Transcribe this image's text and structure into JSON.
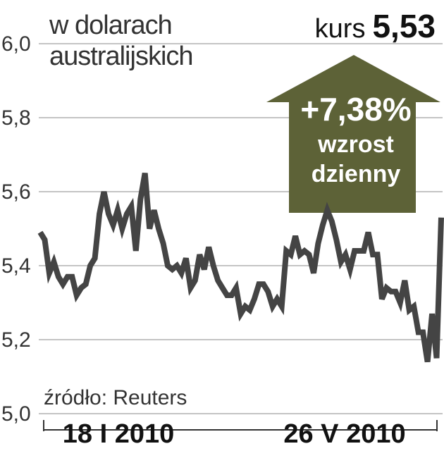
{
  "header": {
    "title_line1": "w dolarach",
    "title_line2": "australijskich",
    "kurs_label": "kurs",
    "kurs_value": "5,53"
  },
  "badge": {
    "change": "+7,38%",
    "line1": "wzrost",
    "line2": "dzienny",
    "color": "#5d6237"
  },
  "source": "źródło: Reuters",
  "colors": {
    "line": "#444444",
    "grid": "#888888",
    "axis": "#333333"
  },
  "chart_data": {
    "type": "line",
    "title": "w dolarach australijskich",
    "ylim": [
      5.0,
      6.0
    ],
    "yticks": [
      "6,0",
      "5,8",
      "5,6",
      "5,4",
      "5,2",
      "5,0"
    ],
    "ytick_values": [
      6.0,
      5.8,
      5.6,
      5.4,
      5.2,
      5.0
    ],
    "xlabels": [
      "18 I 2010",
      "26 V 2010"
    ],
    "grid": true,
    "series": [
      {
        "values": [
          5.49,
          5.47,
          5.38,
          5.41,
          5.37,
          5.35,
          5.37,
          5.37,
          5.32,
          5.34,
          5.35,
          5.4,
          5.42,
          5.54,
          5.6,
          5.54,
          5.51,
          5.55,
          5.5,
          5.54,
          5.56,
          5.44,
          5.58,
          5.65,
          5.5,
          5.55,
          5.5,
          5.46,
          5.4,
          5.39,
          5.4,
          5.38,
          5.42,
          5.34,
          5.36,
          5.43,
          5.39,
          5.45,
          5.4,
          5.36,
          5.34,
          5.32,
          5.32,
          5.34,
          5.27,
          5.29,
          5.28,
          5.31,
          5.35,
          5.35,
          5.33,
          5.29,
          5.31,
          5.29,
          5.44,
          5.43,
          5.48,
          5.43,
          5.44,
          5.43,
          5.38,
          5.46,
          5.51,
          5.55,
          5.52,
          5.47,
          5.41,
          5.43,
          5.39,
          5.44,
          5.44,
          5.44,
          5.49,
          5.43,
          5.43,
          5.31,
          5.34,
          5.33,
          5.33,
          5.3,
          5.36,
          5.28,
          5.29,
          5.22,
          5.22,
          5.14,
          5.27,
          5.15,
          5.53
        ]
      }
    ]
  }
}
